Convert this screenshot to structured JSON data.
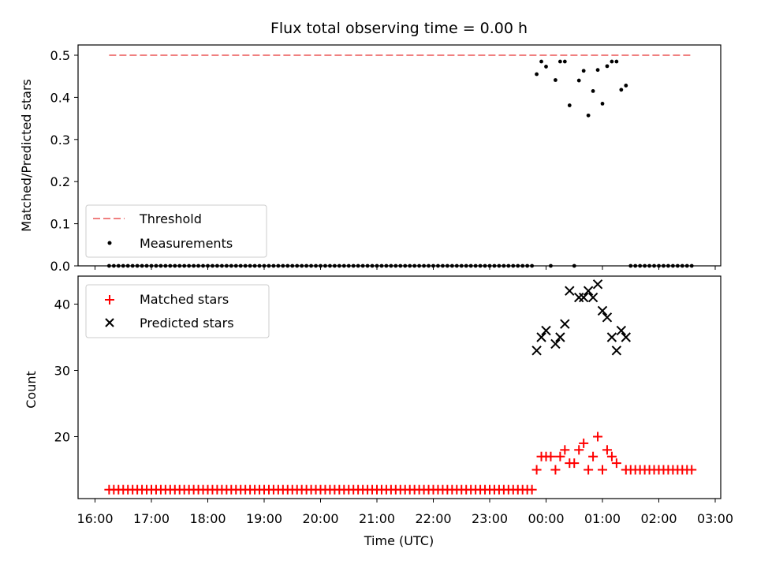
{
  "chart_data": [
    {
      "type": "scatter",
      "title": "Flux total observing time = 0.00 h",
      "ylabel": "Matched/Predicted stars",
      "xlabel": "",
      "xlim": [
        "16:00",
        "03:00"
      ],
      "ylim": [
        0,
        0.52
      ],
      "yticks": [
        0.0,
        0.1,
        0.2,
        0.3,
        0.4,
        0.5
      ],
      "ytick_labels": [
        "0.0",
        "0.1",
        "0.2",
        "0.3",
        "0.4",
        "0.5"
      ],
      "legend_position": "lower-left",
      "threshold": {
        "name": "Threshold",
        "value": 0.5,
        "x_range": [
          "16:15",
          "02:35"
        ],
        "color": "#f08080"
      },
      "measurements": {
        "name": "Measurements",
        "color": "#000000",
        "zero_ranges": [
          {
            "start": "16:15",
            "end": "23:45",
            "step_min": 5
          },
          {
            "start": "01:30",
            "end": "02:35",
            "step_min": 5
          }
        ],
        "points": [
          {
            "x": "23:50",
            "y": 0.455
          },
          {
            "x": "23:55",
            "y": 0.485
          },
          {
            "x": "00:00",
            "y": 0.473
          },
          {
            "x": "00:05",
            "y": 0.0
          },
          {
            "x": "00:10",
            "y": 0.441
          },
          {
            "x": "00:15",
            "y": 0.485
          },
          {
            "x": "00:20",
            "y": 0.485
          },
          {
            "x": "00:25",
            "y": 0.381
          },
          {
            "x": "00:30",
            "y": 0.0
          },
          {
            "x": "00:35",
            "y": 0.44
          },
          {
            "x": "00:40",
            "y": 0.463
          },
          {
            "x": "00:45",
            "y": 0.357
          },
          {
            "x": "00:50",
            "y": 0.415
          },
          {
            "x": "00:55",
            "y": 0.465
          },
          {
            "x": "01:00",
            "y": 0.385
          },
          {
            "x": "01:05",
            "y": 0.474
          },
          {
            "x": "01:10",
            "y": 0.485
          },
          {
            "x": "01:15",
            "y": 0.485
          },
          {
            "x": "01:20",
            "y": 0.418
          },
          {
            "x": "01:25",
            "y": 0.428
          }
        ]
      }
    },
    {
      "type": "scatter",
      "title": "",
      "ylabel": "Count",
      "xlabel": "Time (UTC)",
      "xlim": [
        "16:00",
        "03:00"
      ],
      "ylim": [
        11,
        45
      ],
      "yticks": [
        20,
        30,
        40
      ],
      "ytick_labels": [
        "20",
        "30",
        "40"
      ],
      "xtick_labels": [
        "16:00",
        "17:00",
        "18:00",
        "19:00",
        "20:00",
        "21:00",
        "22:00",
        "23:00",
        "00:00",
        "01:00",
        "02:00",
        "03:00"
      ],
      "legend_position": "upper-left",
      "matched": {
        "name": "Matched stars",
        "color": "#ff0000",
        "constant_ranges": [
          {
            "start": "16:15",
            "end": "23:45",
            "step_min": 5,
            "value": 12
          },
          {
            "start": "01:25",
            "end": "02:35",
            "step_min": 5,
            "value": 15
          }
        ],
        "points": [
          {
            "x": "23:50",
            "y": 15
          },
          {
            "x": "23:55",
            "y": 17
          },
          {
            "x": "00:00",
            "y": 17
          },
          {
            "x": "00:05",
            "y": 17
          },
          {
            "x": "00:10",
            "y": 15
          },
          {
            "x": "00:15",
            "y": 17
          },
          {
            "x": "00:20",
            "y": 18
          },
          {
            "x": "00:25",
            "y": 16
          },
          {
            "x": "00:30",
            "y": 16
          },
          {
            "x": "00:35",
            "y": 18
          },
          {
            "x": "00:40",
            "y": 19
          },
          {
            "x": "00:45",
            "y": 15
          },
          {
            "x": "00:50",
            "y": 17
          },
          {
            "x": "00:55",
            "y": 20
          },
          {
            "x": "01:00",
            "y": 15
          },
          {
            "x": "01:05",
            "y": 18
          },
          {
            "x": "01:10",
            "y": 17
          },
          {
            "x": "01:15",
            "y": 16
          }
        ]
      },
      "predicted": {
        "name": "Predicted stars",
        "color": "#000000",
        "points": [
          {
            "x": "23:50",
            "y": 33
          },
          {
            "x": "23:55",
            "y": 35
          },
          {
            "x": "00:00",
            "y": 36
          },
          {
            "x": "00:10",
            "y": 34
          },
          {
            "x": "00:15",
            "y": 35
          },
          {
            "x": "00:20",
            "y": 37
          },
          {
            "x": "00:25",
            "y": 42
          },
          {
            "x": "00:35",
            "y": 41
          },
          {
            "x": "00:40",
            "y": 41
          },
          {
            "x": "00:45",
            "y": 42
          },
          {
            "x": "00:50",
            "y": 41
          },
          {
            "x": "00:55",
            "y": 43
          },
          {
            "x": "01:00",
            "y": 39
          },
          {
            "x": "01:05",
            "y": 38
          },
          {
            "x": "01:10",
            "y": 35
          },
          {
            "x": "01:15",
            "y": 33
          },
          {
            "x": "01:20",
            "y": 36
          },
          {
            "x": "01:25",
            "y": 35
          }
        ]
      }
    }
  ]
}
